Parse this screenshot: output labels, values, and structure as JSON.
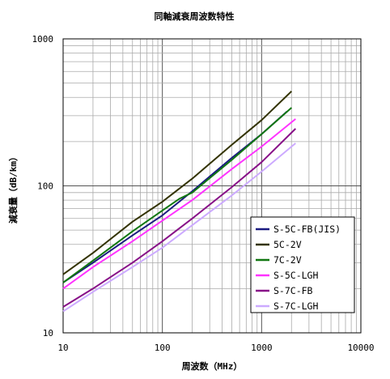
{
  "chart_data": {
    "type": "line",
    "title": "同軸減衰周波数特性",
    "xlabel": "周波数（MHz）",
    "ylabel": "減衰量（dB/km）",
    "x_scale": "log",
    "y_scale": "log",
    "xlim": [
      10,
      10000
    ],
    "ylim": [
      10,
      1000
    ],
    "x_ticks": [
      "10",
      "100",
      "1000",
      "10000"
    ],
    "y_ticks": [
      "10",
      "100",
      "1000"
    ],
    "grid": true,
    "legend_position": "right",
    "series": [
      {
        "name": "S-5C-FB(JIS)",
        "color": "#1a1a80",
        "points": [
          [
            10,
            22
          ],
          [
            20,
            30
          ],
          [
            50,
            46
          ],
          [
            100,
            63
          ],
          [
            200,
            92
          ],
          [
            500,
            155
          ],
          [
            1000,
            225
          ],
          [
            1800,
            320
          ]
        ]
      },
      {
        "name": "5C-2V",
        "color": "#333300",
        "points": [
          [
            10,
            25
          ],
          [
            20,
            35
          ],
          [
            50,
            57
          ],
          [
            100,
            78
          ],
          [
            200,
            112
          ],
          [
            500,
            190
          ],
          [
            1000,
            280
          ],
          [
            2000,
            440
          ]
        ]
      },
      {
        "name": "7C-2V",
        "color": "#117711",
        "points": [
          [
            10,
            22
          ],
          [
            20,
            31
          ],
          [
            50,
            49
          ],
          [
            100,
            68
          ],
          [
            150,
            82
          ],
          [
            200,
            90
          ],
          [
            500,
            150
          ],
          [
            1000,
            225
          ],
          [
            2000,
            340
          ]
        ]
      },
      {
        "name": "S-5C-LGH",
        "color": "#ff33ff",
        "points": [
          [
            10,
            20
          ],
          [
            20,
            28
          ],
          [
            50,
            42
          ],
          [
            100,
            58
          ],
          [
            200,
            80
          ],
          [
            500,
            130
          ],
          [
            1000,
            185
          ],
          [
            2200,
            285
          ]
        ]
      },
      {
        "name": "S-7C-FB",
        "color": "#881188",
        "points": [
          [
            10,
            15
          ],
          [
            20,
            20
          ],
          [
            50,
            30
          ],
          [
            100,
            42
          ],
          [
            200,
            60
          ],
          [
            500,
            98
          ],
          [
            1000,
            145
          ],
          [
            2200,
            245
          ]
        ]
      },
      {
        "name": "S-7C-LGH",
        "color": "#ccaaff",
        "points": [
          [
            10,
            14
          ],
          [
            20,
            19
          ],
          [
            50,
            28
          ],
          [
            100,
            38
          ],
          [
            200,
            54
          ],
          [
            500,
            86
          ],
          [
            1000,
            125
          ],
          [
            2200,
            195
          ]
        ]
      }
    ]
  }
}
